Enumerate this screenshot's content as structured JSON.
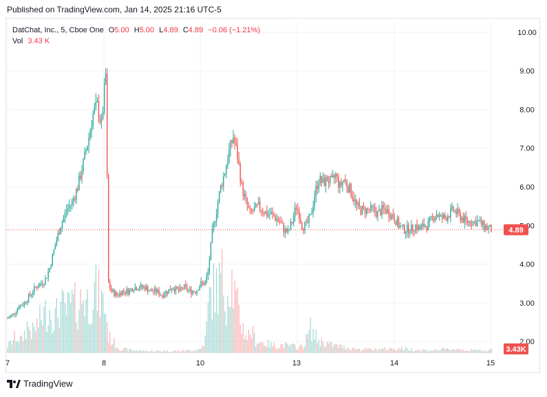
{
  "header": {
    "published": "Published on TradingView.com, Jan 14, 2025 21:16 UTC-5"
  },
  "legend": {
    "symbol": "DatChat, Inc., 5, Cboe One",
    "open_label": "O",
    "open": "5.00",
    "high_label": "H",
    "high": "5.00",
    "low_label": "L",
    "low": "4.89",
    "close_label": "C",
    "close": "4.89",
    "change": "−0.06 (−1.21%)",
    "vol_label": "Vol",
    "vol": "3.43 K"
  },
  "footer": {
    "brand": "TradingView"
  },
  "colors": {
    "up": "#26a69a",
    "down": "#ef5350",
    "last_price": "#ef5350",
    "grid": "#f0f3fa"
  },
  "chart_data": {
    "type": "candlestick",
    "symbol": "DatChat, Inc.",
    "interval": "5",
    "exchange": "Cboe One",
    "ylim": [
      1.7,
      10.3
    ],
    "y_ticks": [
      "2.00",
      "3.00",
      "4.00",
      "5.00",
      "6.00",
      "7.00",
      "8.00",
      "9.00",
      "10.00"
    ],
    "x_ticks": [
      "7",
      "8",
      "10",
      "13",
      "14",
      "15"
    ],
    "last_price": 4.89,
    "last_price_label": "4.89",
    "last_volume_label": "3.43K",
    "grid": true,
    "price_path": [
      [
        0,
        2.6
      ],
      [
        4,
        2.7
      ],
      [
        8,
        2.9
      ],
      [
        12,
        3.0
      ],
      [
        16,
        3.2
      ],
      [
        20,
        3.4
      ],
      [
        24,
        3.5
      ],
      [
        27,
        3.6
      ],
      [
        30,
        3.9
      ],
      [
        34,
        4.5
      ],
      [
        38,
        5.0
      ],
      [
        42,
        5.4
      ],
      [
        46,
        5.6
      ],
      [
        50,
        6.0
      ],
      [
        54,
        6.6
      ],
      [
        58,
        7.3
      ],
      [
        61,
        7.9
      ],
      [
        64,
        8.1
      ],
      [
        67,
        7.6
      ],
      [
        70,
        8.9
      ],
      [
        72,
        3.5
      ],
      [
        74,
        3.3
      ],
      [
        78,
        3.2
      ],
      [
        82,
        3.3
      ],
      [
        86,
        3.3
      ],
      [
        90,
        3.4
      ],
      [
        94,
        3.4
      ],
      [
        98,
        3.4
      ],
      [
        102,
        3.3
      ],
      [
        106,
        3.3
      ],
      [
        110,
        3.2
      ],
      [
        114,
        3.3
      ],
      [
        118,
        3.4
      ],
      [
        122,
        3.3
      ],
      [
        126,
        3.4
      ],
      [
        130,
        3.3
      ],
      [
        134,
        3.3
      ],
      [
        138,
        3.5
      ],
      [
        141,
        3.5
      ],
      [
        143,
        3.8
      ],
      [
        146,
        4.8
      ],
      [
        149,
        5.4
      ],
      [
        152,
        6.0
      ],
      [
        155,
        6.4
      ],
      [
        158,
        6.9
      ],
      [
        161,
        7.3
      ],
      [
        164,
        6.8
      ],
      [
        167,
        6.0
      ],
      [
        170,
        5.6
      ],
      [
        173,
        5.3
      ],
      [
        176,
        5.4
      ],
      [
        179,
        5.5
      ],
      [
        182,
        5.4
      ],
      [
        185,
        5.3
      ],
      [
        188,
        5.3
      ],
      [
        191,
        5.2
      ],
      [
        194,
        5.1
      ],
      [
        197,
        4.9
      ],
      [
        200,
        4.8
      ],
      [
        203,
        5.1
      ],
      [
        206,
        5.5
      ],
      [
        208,
        5.3
      ],
      [
        210,
        5.0
      ],
      [
        213,
        5.0
      ],
      [
        216,
        5.2
      ],
      [
        219,
        5.8
      ],
      [
        222,
        6.2
      ],
      [
        225,
        6.1
      ],
      [
        228,
        6.2
      ],
      [
        231,
        6.1
      ],
      [
        234,
        6.3
      ],
      [
        237,
        6.0
      ],
      [
        240,
        6.2
      ],
      [
        243,
        6.0
      ],
      [
        246,
        5.8
      ],
      [
        249,
        5.5
      ],
      [
        252,
        5.4
      ],
      [
        255,
        5.4
      ],
      [
        258,
        5.4
      ],
      [
        261,
        5.4
      ],
      [
        264,
        5.3
      ],
      [
        267,
        5.4
      ],
      [
        270,
        5.4
      ],
      [
        273,
        5.3
      ],
      [
        276,
        5.2
      ],
      [
        279,
        5.0
      ],
      [
        282,
        4.9
      ],
      [
        285,
        4.9
      ],
      [
        288,
        4.9
      ],
      [
        291,
        5.0
      ],
      [
        294,
        4.9
      ],
      [
        297,
        5.0
      ],
      [
        300,
        5.0
      ],
      [
        303,
        5.2
      ],
      [
        306,
        5.3
      ],
      [
        309,
        5.2
      ],
      [
        312,
        5.2
      ],
      [
        315,
        5.3
      ],
      [
        318,
        5.4
      ],
      [
        321,
        5.3
      ],
      [
        324,
        5.2
      ],
      [
        327,
        5.1
      ],
      [
        330,
        5.1
      ],
      [
        333,
        5.1
      ],
      [
        336,
        5.1
      ],
      [
        339,
        5.0
      ],
      [
        342,
        4.95
      ],
      [
        345,
        4.89
      ]
    ],
    "volume_path": [
      [
        0,
        0.5
      ],
      [
        6,
        1.2
      ],
      [
        10,
        0.9
      ],
      [
        14,
        2.0
      ],
      [
        18,
        1.5
      ],
      [
        22,
        2.2
      ],
      [
        26,
        2.8
      ],
      [
        30,
        3.2
      ],
      [
        34,
        2.6
      ],
      [
        38,
        3.4
      ],
      [
        42,
        3.0
      ],
      [
        46,
        3.6
      ],
      [
        50,
        3.3
      ],
      [
        54,
        4.2
      ],
      [
        58,
        3.6
      ],
      [
        62,
        4.6
      ],
      [
        66,
        4.0
      ],
      [
        70,
        3.2
      ],
      [
        72,
        1.2
      ],
      [
        80,
        0.3
      ],
      [
        90,
        0.2
      ],
      [
        100,
        0.15
      ],
      [
        110,
        0.15
      ],
      [
        120,
        0.15
      ],
      [
        130,
        0.2
      ],
      [
        138,
        0.3
      ],
      [
        141,
        1.0
      ],
      [
        144,
        4.0
      ],
      [
        147,
        4.6
      ],
      [
        150,
        4.8
      ],
      [
        153,
        5.4
      ],
      [
        156,
        4.0
      ],
      [
        159,
        5.9
      ],
      [
        162,
        4.2
      ],
      [
        165,
        2.8
      ],
      [
        168,
        1.8
      ],
      [
        171,
        1.2
      ],
      [
        174,
        1.6
      ],
      [
        177,
        0.9
      ],
      [
        180,
        0.8
      ],
      [
        184,
        0.7
      ],
      [
        188,
        0.6
      ],
      [
        192,
        0.5
      ],
      [
        196,
        0.6
      ],
      [
        200,
        0.5
      ],
      [
        204,
        0.5
      ],
      [
        208,
        0.4
      ],
      [
        212,
        0.7
      ],
      [
        216,
        1.8
      ],
      [
        219,
        1.3
      ],
      [
        222,
        0.9
      ],
      [
        226,
        0.8
      ],
      [
        230,
        0.6
      ],
      [
        236,
        0.5
      ],
      [
        242,
        0.4
      ],
      [
        250,
        0.3
      ],
      [
        260,
        0.25
      ],
      [
        270,
        0.3
      ],
      [
        280,
        0.35
      ],
      [
        290,
        0.25
      ],
      [
        300,
        0.2
      ],
      [
        310,
        0.25
      ],
      [
        320,
        0.3
      ],
      [
        330,
        0.2
      ],
      [
        340,
        0.2
      ],
      [
        345,
        0.25
      ]
    ]
  }
}
